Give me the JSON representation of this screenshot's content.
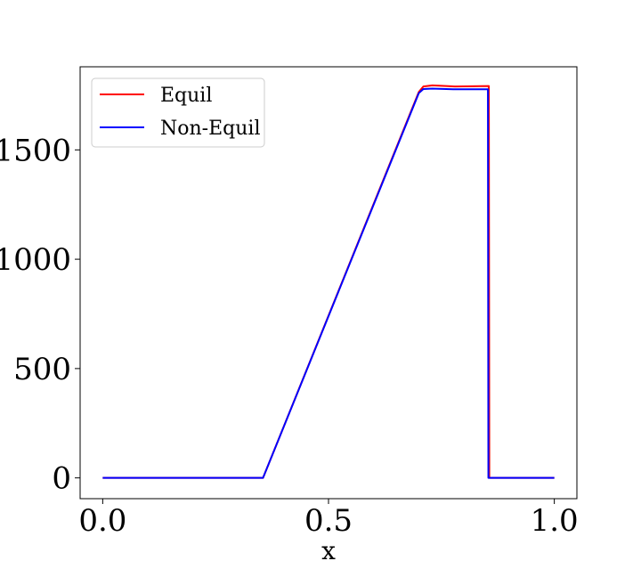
{
  "chart_data": {
    "type": "line",
    "title": "",
    "xlabel": "x",
    "ylabel": "",
    "xlim": [
      -0.05,
      1.05
    ],
    "ylim": [
      -95,
      1880
    ],
    "xticks": [
      0.0,
      0.5,
      1.0
    ],
    "xtick_labels": [
      "0.0",
      "0.5",
      "1.0"
    ],
    "yticks": [
      0,
      500,
      1000,
      1500
    ],
    "ytick_labels": [
      "0",
      "500",
      "1000",
      "1500"
    ],
    "grid": false,
    "legend_position": "top-left",
    "series": [
      {
        "name": "Equil",
        "color": "#ff0000",
        "x": [
          0.0,
          0.355,
          0.7,
          0.71,
          0.73,
          0.78,
          0.855,
          0.856,
          0.86,
          1.0
        ],
        "y": [
          0,
          0,
          1765,
          1790,
          1795,
          1790,
          1792,
          0,
          0,
          0
        ]
      },
      {
        "name": "Non-Equil",
        "color": "#0000ff",
        "x": [
          0.0,
          0.355,
          0.7,
          0.71,
          0.73,
          0.78,
          0.853,
          0.854,
          0.86,
          1.0
        ],
        "y": [
          0,
          0,
          1760,
          1778,
          1780,
          1777,
          1777,
          0,
          0,
          0
        ]
      }
    ]
  }
}
